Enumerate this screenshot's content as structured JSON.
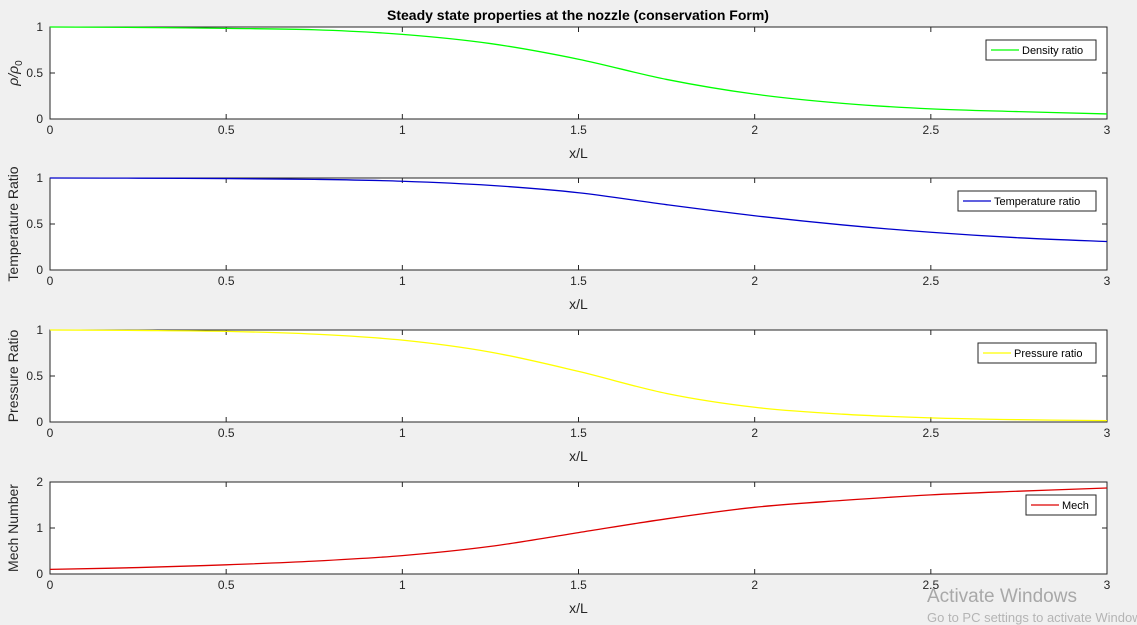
{
  "figure": {
    "title": "Steady state properties at the nozzle (conservation Form)"
  },
  "chart_data": [
    {
      "type": "line",
      "xlabel": "x/L",
      "ylabel": "ρ/ρ0",
      "xlim": [
        0,
        3
      ],
      "ylim": [
        0,
        1
      ],
      "xticks": [
        "0",
        "0.5",
        "1",
        "1.5",
        "2",
        "2.5",
        "3"
      ],
      "yticks": [
        "0",
        "0.5",
        "1"
      ],
      "legend_position": "top-right",
      "series": [
        {
          "name": "Density ratio",
          "color": "#00ff00",
          "x": [
            0,
            0.25,
            0.5,
            0.75,
            1.0,
            1.25,
            1.5,
            1.75,
            2.0,
            2.25,
            2.5,
            2.75,
            3.0
          ],
          "y": [
            1.0,
            0.995,
            0.985,
            0.97,
            0.92,
            0.82,
            0.65,
            0.43,
            0.27,
            0.17,
            0.11,
            0.08,
            0.055
          ]
        }
      ]
    },
    {
      "type": "line",
      "xlabel": "x/L",
      "ylabel": "Temperature Ratio",
      "xlim": [
        0,
        3
      ],
      "ylim": [
        0,
        1
      ],
      "xticks": [
        "0",
        "0.5",
        "1",
        "1.5",
        "2",
        "2.5",
        "3"
      ],
      "yticks": [
        "0",
        "0.5",
        "1"
      ],
      "legend_position": "top-right",
      "series": [
        {
          "name": "Temperature ratio",
          "color": "#0000cc",
          "x": [
            0,
            0.25,
            0.5,
            0.75,
            1.0,
            1.25,
            1.5,
            1.75,
            2.0,
            2.25,
            2.5,
            2.75,
            3.0
          ],
          "y": [
            1.0,
            0.998,
            0.994,
            0.985,
            0.965,
            0.92,
            0.84,
            0.71,
            0.59,
            0.49,
            0.41,
            0.35,
            0.31
          ]
        }
      ]
    },
    {
      "type": "line",
      "xlabel": "x/L",
      "ylabel": "Pressure Ratio",
      "xlim": [
        0,
        3
      ],
      "ylim": [
        0,
        1
      ],
      "xticks": [
        "0",
        "0.5",
        "1",
        "1.5",
        "2",
        "2.5",
        "3"
      ],
      "yticks": [
        "0",
        "0.5",
        "1"
      ],
      "legend_position": "top-right",
      "series": [
        {
          "name": "Pressure ratio",
          "color": "#ffff00",
          "x": [
            0,
            0.25,
            0.5,
            0.75,
            1.0,
            1.25,
            1.5,
            1.75,
            2.0,
            2.25,
            2.5,
            2.75,
            3.0
          ],
          "y": [
            1.0,
            0.995,
            0.985,
            0.955,
            0.89,
            0.76,
            0.55,
            0.31,
            0.16,
            0.085,
            0.045,
            0.025,
            0.015
          ]
        }
      ]
    },
    {
      "type": "line",
      "xlabel": "x/L",
      "ylabel": "Mech Number",
      "xlim": [
        0,
        3
      ],
      "ylim": [
        0,
        2
      ],
      "xticks": [
        "0",
        "0.5",
        "1",
        "1.5",
        "2",
        "2.5",
        "3"
      ],
      "yticks": [
        "0",
        "1",
        "2"
      ],
      "legend_position": "top-right",
      "series": [
        {
          "name": "Mech",
          "color": "#dd0000",
          "x": [
            0,
            0.25,
            0.5,
            0.75,
            1.0,
            1.25,
            1.5,
            1.75,
            2.0,
            2.25,
            2.5,
            2.75,
            3.0
          ],
          "y": [
            0.1,
            0.14,
            0.2,
            0.28,
            0.4,
            0.6,
            0.9,
            1.2,
            1.45,
            1.6,
            1.72,
            1.8,
            1.87
          ]
        }
      ]
    }
  ],
  "watermark": {
    "line1": "Activate Windows",
    "line2": "Go to PC settings to activate Windows."
  }
}
